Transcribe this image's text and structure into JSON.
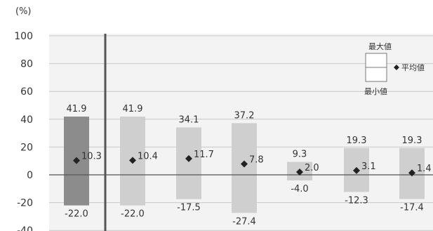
{
  "chart_data": {
    "type": "range-bar",
    "y_unit": "(%)",
    "ylim": [
      -40,
      100
    ],
    "yticks": [
      100,
      80,
      60,
      40,
      20,
      0,
      -20,
      -40
    ],
    "grid": true,
    "legend": {
      "placement": "top-right",
      "max_label": "最大値",
      "min_label": "最小値",
      "avg_label": "平均値"
    },
    "series": [
      {
        "max": 41.9,
        "min": -22.0,
        "avg": 10.3,
        "max_label": "41.9",
        "min_label": "-22.0",
        "avg_label": "10.3",
        "color": "#8c8c8c"
      },
      {
        "max": 41.9,
        "min": -22.0,
        "avg": 10.4,
        "max_label": "41.9",
        "min_label": "-22.0",
        "avg_label": "10.4",
        "color": "#cfcfcf"
      },
      {
        "max": 34.1,
        "min": -17.5,
        "avg": 11.7,
        "max_label": "34.1",
        "min_label": "-17.5",
        "avg_label": "11.7",
        "color": "#cfcfcf"
      },
      {
        "max": 37.2,
        "min": -27.4,
        "avg": 7.8,
        "max_label": "37.2",
        "min_label": "-27.4",
        "avg_label": "7.8",
        "color": "#cfcfcf"
      },
      {
        "max": 9.3,
        "min": -4.0,
        "avg": 2.0,
        "max_label": "9.3",
        "min_label": "-4.0",
        "avg_label": "2.0",
        "color": "#cfcfcf"
      },
      {
        "max": 19.3,
        "min": -12.3,
        "avg": 3.1,
        "max_label": "19.3",
        "min_label": "-12.3",
        "avg_label": "3.1",
        "color": "#cfcfcf"
      },
      {
        "max": 19.3,
        "min": -17.4,
        "avg": 1.4,
        "max_label": "19.3",
        "min_label": "-17.4",
        "avg_label": "1.4",
        "color": "#cfcfcf"
      }
    ]
  }
}
